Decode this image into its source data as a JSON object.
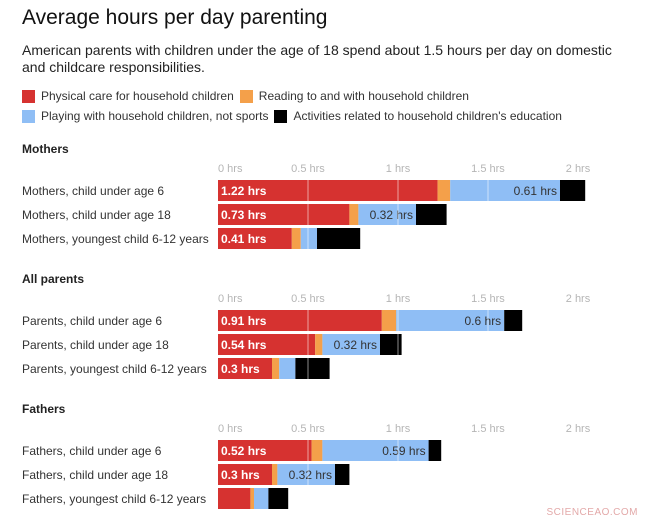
{
  "title": "Average hours per day parenting",
  "subtitle": "American parents with children under the age of 18 spend about 1.5 hours per day on domestic and childcare responsibilities.",
  "watermark": "SCIENCEAO.COM",
  "colors": {
    "physical": "#d63230",
    "reading": "#f4a04a",
    "playing": "#8fbef5",
    "education": "#000000"
  },
  "chart_data": {
    "type": "bar",
    "orientation": "horizontal",
    "stacked": true,
    "unit": "hrs",
    "xlim": [
      0,
      2
    ],
    "ticks": [
      {
        "value": 0,
        "label": "0 hrs"
      },
      {
        "value": 0.5,
        "label": "0.5 hrs"
      },
      {
        "value": 1,
        "label": "1 hrs"
      },
      {
        "value": 1.5,
        "label": "1.5 hrs"
      },
      {
        "value": 2,
        "label": "2 hrs"
      }
    ],
    "series": [
      {
        "key": "physical",
        "name": "Physical care for household children"
      },
      {
        "key": "reading",
        "name": "Reading to and with household children"
      },
      {
        "key": "playing",
        "name": "Playing with household children, not sports"
      },
      {
        "key": "education",
        "name": "Activities related to household children's education"
      }
    ],
    "groups": [
      {
        "title": "Mothers",
        "rows": [
          {
            "label": "Mothers, child under age 6",
            "values": [
              1.22,
              0.07,
              0.61,
              0.14
            ],
            "labels": [
              "1.22 hrs",
              "",
              "0.61 hrs",
              ""
            ]
          },
          {
            "label": "Mothers, child under age 18",
            "values": [
              0.73,
              0.05,
              0.32,
              0.17
            ],
            "labels": [
              "0.73 hrs",
              "",
              "0.32 hrs",
              ""
            ]
          },
          {
            "label": "Mothers, youngest child 6-12 years",
            "values": [
              0.41,
              0.05,
              0.09,
              0.24
            ],
            "labels": [
              "0.41 hrs",
              "",
              "",
              ""
            ]
          }
        ]
      },
      {
        "title": "All parents",
        "rows": [
          {
            "label": "Parents, child under age 6",
            "values": [
              0.91,
              0.08,
              0.6,
              0.1
            ],
            "labels": [
              "0.91 hrs",
              "",
              "0.6 hrs",
              ""
            ]
          },
          {
            "label": "Parents, child under age 18",
            "values": [
              0.54,
              0.04,
              0.32,
              0.12
            ],
            "labels": [
              "0.54 hrs",
              "",
              "0.32 hrs",
              ""
            ]
          },
          {
            "label": "Parents, youngest child 6-12 years",
            "values": [
              0.3,
              0.04,
              0.09,
              0.19
            ],
            "labels": [
              "0.3 hrs",
              "",
              "",
              ""
            ]
          }
        ]
      },
      {
        "title": "Fathers",
        "rows": [
          {
            "label": "Fathers, child under age 6",
            "values": [
              0.52,
              0.06,
              0.59,
              0.07
            ],
            "labels": [
              "0.52 hrs",
              "",
              "0.59 hrs",
              ""
            ]
          },
          {
            "label": "Fathers, child under age 18",
            "values": [
              0.3,
              0.03,
              0.32,
              0.08
            ],
            "labels": [
              "0.3 hrs",
              "",
              "0.32 hrs",
              ""
            ]
          },
          {
            "label": "Fathers, youngest child 6-12 years",
            "values": [
              0.18,
              0.02,
              0.08,
              0.11
            ],
            "labels": [
              "",
              "",
              "",
              ""
            ]
          }
        ]
      }
    ]
  }
}
